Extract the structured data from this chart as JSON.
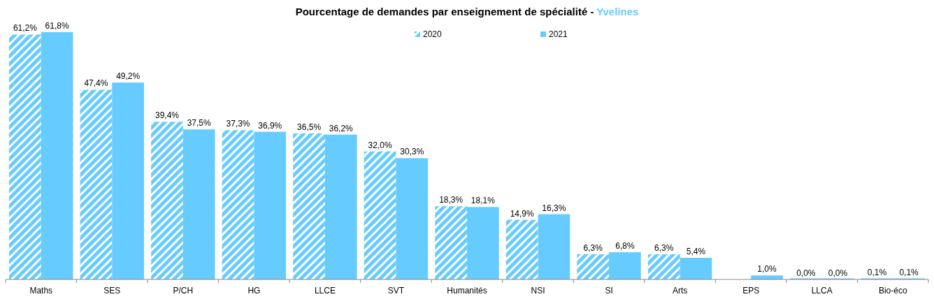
{
  "chart_data": {
    "type": "bar",
    "title": "Pourcentage de demandes par enseignement de spécialité - Yvelines",
    "categories": [
      "Maths",
      "SES",
      "P/CH",
      "HG",
      "LLCE",
      "SVT",
      "Humanités",
      "NSI",
      "SI",
      "Arts",
      "EPS",
      "LLCA",
      "Bio-éco"
    ],
    "series": [
      {
        "name": "2020",
        "color": "#66ccff",
        "values": [
          61.2,
          47.4,
          39.4,
          37.3,
          36.5,
          32.0,
          18.3,
          14.9,
          6.3,
          6.3,
          null,
          0.0,
          0.1
        ],
        "value_labels": [
          "61,2%",
          "47,4%",
          "39,4%",
          "37,3%",
          "36,5%",
          "32,0%",
          "18,3%",
          "14,9%",
          "6,3%",
          "6,3%",
          null,
          "0,0%",
          "0,1%"
        ]
      },
      {
        "name": "2021",
        "color": "#66ccff",
        "values": [
          61.8,
          49.2,
          37.5,
          36.9,
          36.2,
          30.3,
          18.1,
          16.3,
          6.8,
          5.4,
          1.0,
          0.0,
          0.1
        ],
        "value_labels": [
          "61,8%",
          "49,2%",
          "37,5%",
          "36,9%",
          "36,2%",
          "30,3%",
          "18,1%",
          "16,3%",
          "6,8%",
          "5,4%",
          "1,0%",
          "0,0%",
          "0,1%"
        ]
      }
    ],
    "legend": "top",
    "grid": false
  }
}
